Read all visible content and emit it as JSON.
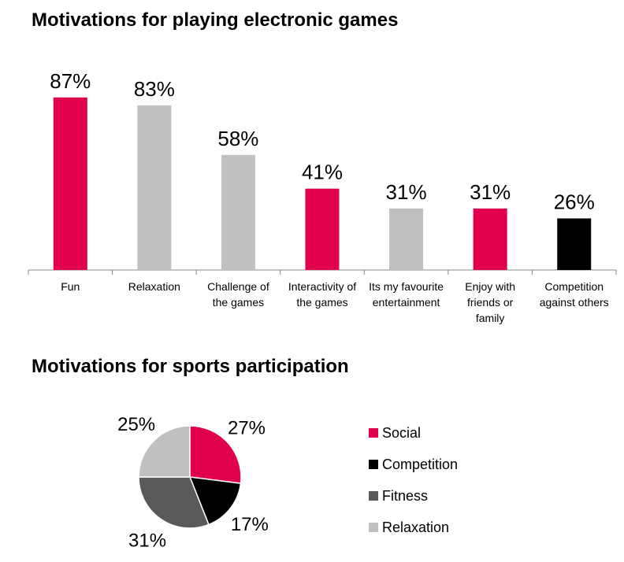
{
  "chart_data": [
    {
      "type": "bar",
      "title": "Motivations for playing electronic games",
      "categories": [
        [
          "Fun"
        ],
        [
          "Relaxation"
        ],
        [
          "Challenge of",
          "the games"
        ],
        [
          "Interactivity of",
          "the games"
        ],
        [
          "Its my favourite",
          "entertainment"
        ],
        [
          "Enjoy with",
          "friends or",
          "family"
        ],
        [
          "Competition",
          "against others"
        ]
      ],
      "values": [
        87,
        83,
        58,
        41,
        31,
        31,
        26
      ],
      "value_labels": [
        "87%",
        "83%",
        "58%",
        "41%",
        "31%",
        "31%",
        "26%"
      ],
      "bar_colors": [
        "#e0004d",
        "#c0c0c0",
        "#c0c0c0",
        "#e0004d",
        "#c0c0c0",
        "#e0004d",
        "#000000"
      ],
      "ylim": [
        0,
        100
      ],
      "grid": false
    },
    {
      "type": "pie",
      "title": "Motivations for sports participation",
      "labels": [
        "Social",
        "Competition",
        "Fitness",
        "Relaxation"
      ],
      "values": [
        27,
        17,
        31,
        25
      ],
      "value_labels": [
        "27%",
        "17%",
        "31%",
        "25%"
      ],
      "colors": [
        "#e0004d",
        "#000000",
        "#595959",
        "#c0c0c0"
      ],
      "legend": "right"
    }
  ]
}
